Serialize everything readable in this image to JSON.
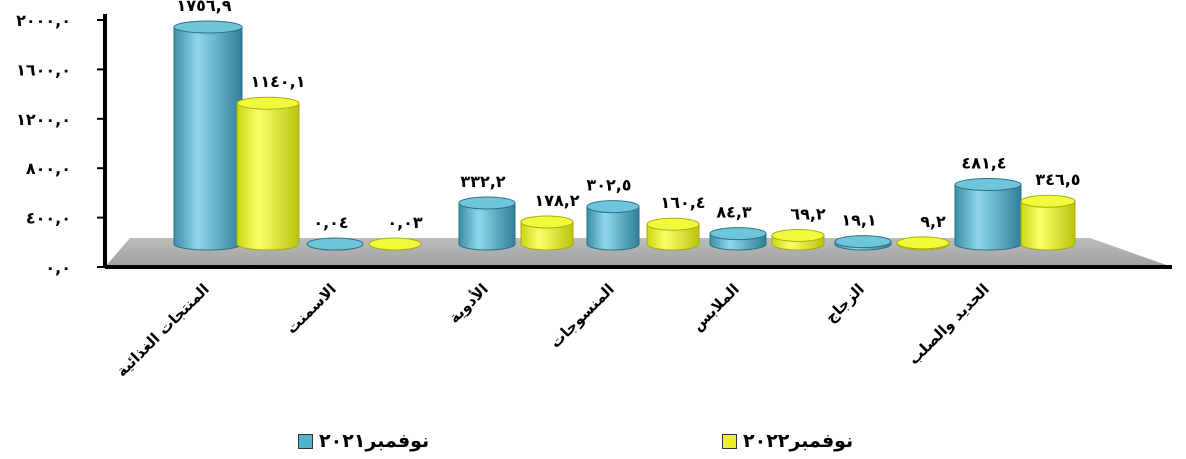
{
  "chart_data": {
    "type": "bar",
    "style": "3d-cylinder",
    "categories": [
      "المنتجات الغذائية",
      "الاسمنت",
      "الأدوية",
      "المنسوجات",
      "الملابس",
      "الزجاج",
      "الحديد والصلب"
    ],
    "series": [
      {
        "name": "نوفمبر٢٠٢١",
        "color": "#4fb3cc",
        "values": [
          1756.9,
          0.04,
          332.2,
          302.5,
          84.3,
          19.1,
          481.4
        ],
        "labels": [
          "١٧٥٦,٩",
          "٠,٠٤",
          "٣٣٢,٢",
          "٣٠٢,٥",
          "٨٤,٣",
          "١٩,١",
          "٤٨١,٤"
        ]
      },
      {
        "name": "نوفمبر٢٠٢٢",
        "color": "#e8f224",
        "values": [
          1140.1,
          0.03,
          178.2,
          160.4,
          69.2,
          9.2,
          346.5
        ],
        "labels": [
          "١١٤٠,١",
          "٠,٠٣",
          "١٧٨,٢",
          "١٦٠,٤",
          "٦٩,٢",
          "٩,٢",
          "٣٤٦,٥"
        ]
      }
    ],
    "ylim": [
      0,
      2000
    ],
    "yticks": [
      0,
      400,
      800,
      1200,
      1600,
      2000
    ],
    "ytick_labels": [
      "٠,٠",
      "٤٠٠,٠",
      "٨٠٠,٠",
      "١٢٠٠,٠",
      "١٦٠٠,٠",
      "٢٠٠٠,٠"
    ],
    "grid": false,
    "legend": "bottom"
  }
}
